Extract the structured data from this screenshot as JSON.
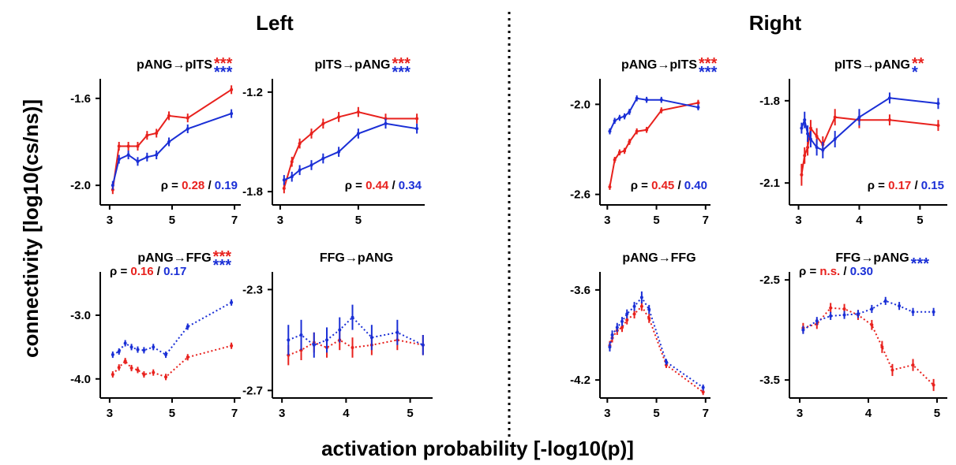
{
  "figure": {
    "headers": [
      "Left",
      "Right"
    ],
    "ylabel": "connectivity [log10(cs/ns)]",
    "xlabel": "activation probability [-log10(p)]"
  },
  "colors": {
    "red": "#e8211d",
    "blue": "#1a2fd6",
    "axis": "#000000"
  },
  "chart_data": [
    {
      "type": "line",
      "hemisphere": "Left",
      "title": "pANG→pITS",
      "stars": [
        {
          "text": "***",
          "color": "red"
        },
        {
          "text": "***",
          "color": "blue"
        }
      ],
      "rho": {
        "label": "ρ =",
        "red": "0.28",
        "blue": "0.19",
        "position": "bottom-right"
      },
      "xlim": [
        2.7,
        7.2
      ],
      "ylim": [
        -2.09,
        -1.51
      ],
      "xticks": [
        3,
        5,
        7
      ],
      "yticks": [
        -1.6,
        -2.0
      ],
      "ytick_labels": [
        "-1.6",
        "-2.0"
      ],
      "line_style": "solid",
      "series": [
        {
          "color": "red",
          "x": [
            3.1,
            3.3,
            3.6,
            3.9,
            4.2,
            4.5,
            4.9,
            5.5,
            6.9
          ],
          "y": [
            -2.02,
            -1.82,
            -1.82,
            -1.82,
            -1.77,
            -1.76,
            -1.68,
            -1.69,
            -1.56
          ],
          "err": [
            0.02,
            0.02,
            0.02,
            0.02,
            0.02,
            0.02,
            0.02,
            0.02,
            0.02
          ]
        },
        {
          "color": "blue",
          "x": [
            3.1,
            3.3,
            3.6,
            3.9,
            4.2,
            4.5,
            4.9,
            5.5,
            6.9
          ],
          "y": [
            -2.0,
            -1.88,
            -1.86,
            -1.89,
            -1.87,
            -1.86,
            -1.8,
            -1.74,
            -1.67
          ],
          "err": [
            0.02,
            0.02,
            0.02,
            0.02,
            0.02,
            0.02,
            0.02,
            0.02,
            0.02
          ]
        }
      ]
    },
    {
      "type": "line",
      "hemisphere": "Left",
      "title": "pITS→pANG",
      "stars": [
        {
          "text": "***",
          "color": "red"
        },
        {
          "text": "***",
          "color": "blue"
        }
      ],
      "rho": {
        "label": "ρ =",
        "red": "0.44",
        "blue": "0.34",
        "position": "bottom-right"
      },
      "xlim": [
        2.8,
        6.7
      ],
      "ylim": [
        -1.88,
        -1.12
      ],
      "xticks": [
        3,
        5
      ],
      "yticks": [
        -1.2,
        -1.8
      ],
      "ytick_labels": [
        "-1.2",
        "-1.8"
      ],
      "line_style": "solid",
      "series": [
        {
          "color": "red",
          "x": [
            3.1,
            3.3,
            3.5,
            3.8,
            4.1,
            4.5,
            5.0,
            5.7,
            6.5
          ],
          "y": [
            -1.78,
            -1.62,
            -1.51,
            -1.45,
            -1.39,
            -1.35,
            -1.32,
            -1.36,
            -1.36
          ],
          "err": [
            0.03,
            0.03,
            0.03,
            0.03,
            0.03,
            0.03,
            0.03,
            0.03,
            0.03
          ]
        },
        {
          "color": "blue",
          "x": [
            3.1,
            3.3,
            3.5,
            3.8,
            4.1,
            4.5,
            5.0,
            5.7,
            6.5
          ],
          "y": [
            -1.73,
            -1.71,
            -1.67,
            -1.64,
            -1.6,
            -1.56,
            -1.45,
            -1.39,
            -1.42
          ],
          "err": [
            0.03,
            0.03,
            0.03,
            0.03,
            0.03,
            0.03,
            0.03,
            0.03,
            0.03
          ]
        }
      ]
    },
    {
      "type": "line",
      "hemisphere": "Left",
      "title": "pANG→FFG",
      "stars": [
        {
          "text": "***",
          "color": "red"
        },
        {
          "text": "***",
          "color": "blue"
        }
      ],
      "rho": {
        "label": "ρ =",
        "red": "0.16",
        "blue": "0.17",
        "position": "top-left"
      },
      "xlim": [
        2.7,
        7.2
      ],
      "ylim": [
        -4.3,
        -2.32
      ],
      "xticks": [
        3,
        5,
        7
      ],
      "yticks": [
        -3.0,
        -4.0
      ],
      "ytick_labels": [
        "-3.0",
        "-4.0"
      ],
      "line_style": "dotted",
      "series": [
        {
          "color": "red",
          "x": [
            3.1,
            3.3,
            3.5,
            3.7,
            3.9,
            4.1,
            4.4,
            4.8,
            5.5,
            6.9
          ],
          "y": [
            -3.93,
            -3.82,
            -3.72,
            -3.83,
            -3.86,
            -3.93,
            -3.9,
            -3.97,
            -3.66,
            -3.48
          ],
          "err": [
            0.05,
            0.05,
            0.05,
            0.05,
            0.05,
            0.05,
            0.05,
            0.05,
            0.05,
            0.05
          ]
        },
        {
          "color": "blue",
          "x": [
            3.1,
            3.3,
            3.5,
            3.7,
            3.9,
            4.1,
            4.4,
            4.8,
            5.5,
            6.9
          ],
          "y": [
            -3.62,
            -3.57,
            -3.44,
            -3.5,
            -3.54,
            -3.55,
            -3.5,
            -3.62,
            -3.18,
            -2.8
          ],
          "err": [
            0.05,
            0.05,
            0.05,
            0.05,
            0.05,
            0.05,
            0.05,
            0.05,
            0.05,
            0.05
          ]
        }
      ]
    },
    {
      "type": "line",
      "hemisphere": "Left",
      "title": "FFG→pANG",
      "stars": [],
      "rho": null,
      "xlim": [
        2.85,
        5.35
      ],
      "ylim": [
        -2.73,
        -2.23
      ],
      "xticks": [
        3,
        4,
        5
      ],
      "yticks": [
        -2.3,
        -2.7
      ],
      "ytick_labels": [
        "-2.3",
        "-2.7"
      ],
      "line_style": "dotted",
      "series": [
        {
          "color": "red",
          "x": [
            3.1,
            3.3,
            3.5,
            3.7,
            3.9,
            4.1,
            4.4,
            4.8,
            5.2
          ],
          "y": [
            -2.56,
            -2.54,
            -2.51,
            -2.53,
            -2.5,
            -2.53,
            -2.52,
            -2.5,
            -2.52
          ],
          "err": [
            0.04,
            0.04,
            0.04,
            0.04,
            0.04,
            0.04,
            0.04,
            0.04,
            0.04
          ]
        },
        {
          "color": "blue",
          "x": [
            3.1,
            3.3,
            3.5,
            3.7,
            3.9,
            4.1,
            4.4,
            4.8,
            5.2
          ],
          "y": [
            -2.5,
            -2.48,
            -2.52,
            -2.5,
            -2.46,
            -2.41,
            -2.49,
            -2.47,
            -2.52
          ],
          "err": [
            0.06,
            0.06,
            0.05,
            0.05,
            0.05,
            0.05,
            0.05,
            0.05,
            0.04
          ]
        }
      ]
    },
    {
      "type": "line",
      "hemisphere": "Right",
      "title": "pANG→pITS",
      "stars": [
        {
          "text": "***",
          "color": "red"
        },
        {
          "text": "***",
          "color": "blue"
        }
      ],
      "rho": {
        "label": "ρ =",
        "red": "0.45",
        "blue": "0.40",
        "position": "bottom-right"
      },
      "xlim": [
        2.7,
        7.2
      ],
      "ylim": [
        -2.67,
        -1.83
      ],
      "xticks": [
        3,
        5,
        7
      ],
      "yticks": [
        -2.0,
        -2.6
      ],
      "ytick_labels": [
        "-2.0",
        "-2.6"
      ],
      "line_style": "solid",
      "series": [
        {
          "color": "red",
          "x": [
            3.1,
            3.3,
            3.5,
            3.7,
            3.9,
            4.2,
            4.6,
            5.2,
            6.7
          ],
          "y": [
            -2.55,
            -2.37,
            -2.32,
            -2.31,
            -2.25,
            -2.18,
            -2.17,
            -2.04,
            -1.99
          ],
          "err": [
            0.02,
            0.02,
            0.02,
            0.02,
            0.02,
            0.02,
            0.02,
            0.02,
            0.02
          ]
        },
        {
          "color": "blue",
          "x": [
            3.1,
            3.3,
            3.5,
            3.7,
            3.9,
            4.2,
            4.6,
            5.2,
            6.7
          ],
          "y": [
            -2.18,
            -2.11,
            -2.09,
            -2.08,
            -2.05,
            -1.96,
            -1.97,
            -1.97,
            -2.02
          ],
          "err": [
            0.02,
            0.02,
            0.02,
            0.02,
            0.02,
            0.02,
            0.02,
            0.02,
            0.02
          ]
        }
      ]
    },
    {
      "type": "line",
      "hemisphere": "Right",
      "title": "pITS→pANG",
      "stars": [
        {
          "text": "**",
          "color": "red"
        },
        {
          "text": "*",
          "color": "blue"
        }
      ],
      "rho": {
        "label": "ρ =",
        "red": "0.17",
        "blue": "0.15",
        "position": "bottom-right"
      },
      "xlim": [
        2.85,
        5.45
      ],
      "ylim": [
        -2.18,
        -1.72
      ],
      "xticks": [
        3,
        4,
        5
      ],
      "yticks": [
        -1.8,
        -2.1
      ],
      "ytick_labels": [
        "-1.8",
        "-2.1"
      ],
      "line_style": "solid",
      "series": [
        {
          "color": "red",
          "x": [
            3.05,
            3.1,
            3.15,
            3.2,
            3.3,
            3.4,
            3.6,
            4.0,
            4.5,
            5.3
          ],
          "y": [
            -2.07,
            -2.0,
            -1.97,
            -1.9,
            -1.93,
            -1.96,
            -1.86,
            -1.87,
            -1.87,
            -1.89
          ],
          "err": [
            0.04,
            0.03,
            0.03,
            0.03,
            0.03,
            0.03,
            0.03,
            0.03,
            0.02,
            0.02
          ]
        },
        {
          "color": "blue",
          "x": [
            3.05,
            3.1,
            3.15,
            3.2,
            3.3,
            3.4,
            3.6,
            4.0,
            4.5,
            5.3
          ],
          "y": [
            -1.9,
            -1.87,
            -1.92,
            -1.94,
            -1.97,
            -1.98,
            -1.94,
            -1.86,
            -1.79,
            -1.81
          ],
          "err": [
            0.02,
            0.03,
            0.03,
            0.03,
            0.03,
            0.03,
            0.03,
            0.03,
            0.02,
            0.02
          ]
        }
      ]
    },
    {
      "type": "line",
      "hemisphere": "Right",
      "title": "pANG→FFG",
      "stars": [],
      "rho": null,
      "xlim": [
        2.7,
        7.2
      ],
      "ylim": [
        -4.32,
        -3.48
      ],
      "xticks": [
        3,
        5,
        7
      ],
      "yticks": [
        -3.6,
        -4.2
      ],
      "ytick_labels": [
        "-3.6",
        "-4.2"
      ],
      "line_style": "dotted",
      "series": [
        {
          "color": "red",
          "x": [
            3.1,
            3.2,
            3.4,
            3.6,
            3.8,
            4.1,
            4.4,
            4.7,
            5.4,
            6.9
          ],
          "y": [
            -3.97,
            -3.92,
            -3.87,
            -3.85,
            -3.8,
            -3.76,
            -3.71,
            -3.79,
            -4.1,
            -4.28
          ],
          "err": [
            0.03,
            0.03,
            0.03,
            0.03,
            0.03,
            0.03,
            0.03,
            0.03,
            0.02,
            0.02
          ]
        },
        {
          "color": "blue",
          "x": [
            3.1,
            3.2,
            3.4,
            3.6,
            3.8,
            4.1,
            4.4,
            4.7,
            5.4,
            6.9
          ],
          "y": [
            -3.98,
            -3.9,
            -3.85,
            -3.81,
            -3.76,
            -3.71,
            -3.65,
            -3.73,
            -4.08,
            -4.25
          ],
          "err": [
            0.03,
            0.03,
            0.03,
            0.03,
            0.03,
            0.03,
            0.04,
            0.03,
            0.02,
            0.02
          ]
        }
      ]
    },
    {
      "type": "line",
      "hemisphere": "Right",
      "title": "FFG→pANG",
      "stars": [
        {
          "text": "***",
          "color": "blue"
        }
      ],
      "rho": {
        "label": "ρ =",
        "red": "n.s.",
        "blue": "0.30",
        "position": "top-left"
      },
      "xlim": [
        2.85,
        5.15
      ],
      "ylim": [
        -3.68,
        -2.42
      ],
      "xticks": [
        3,
        4,
        5
      ],
      "yticks": [
        -2.5,
        -3.5
      ],
      "ytick_labels": [
        "-2.5",
        "-3.5"
      ],
      "line_style": "dotted",
      "series": [
        {
          "color": "red",
          "x": [
            3.05,
            3.25,
            3.45,
            3.65,
            3.85,
            4.05,
            4.2,
            4.35,
            4.65,
            4.95
          ],
          "y": [
            -2.98,
            -2.94,
            -2.78,
            -2.79,
            -2.85,
            -2.95,
            -3.17,
            -3.4,
            -3.35,
            -3.55
          ],
          "err": [
            0.05,
            0.05,
            0.05,
            0.05,
            0.05,
            0.05,
            0.06,
            0.06,
            0.06,
            0.06
          ]
        },
        {
          "color": "blue",
          "x": [
            3.05,
            3.25,
            3.45,
            3.65,
            3.85,
            4.05,
            4.25,
            4.45,
            4.65,
            4.95
          ],
          "y": [
            -3.0,
            -2.91,
            -2.86,
            -2.85,
            -2.84,
            -2.79,
            -2.71,
            -2.76,
            -2.82,
            -2.82
          ],
          "err": [
            0.04,
            0.04,
            0.04,
            0.04,
            0.04,
            0.04,
            0.04,
            0.04,
            0.04,
            0.04
          ]
        }
      ]
    }
  ]
}
